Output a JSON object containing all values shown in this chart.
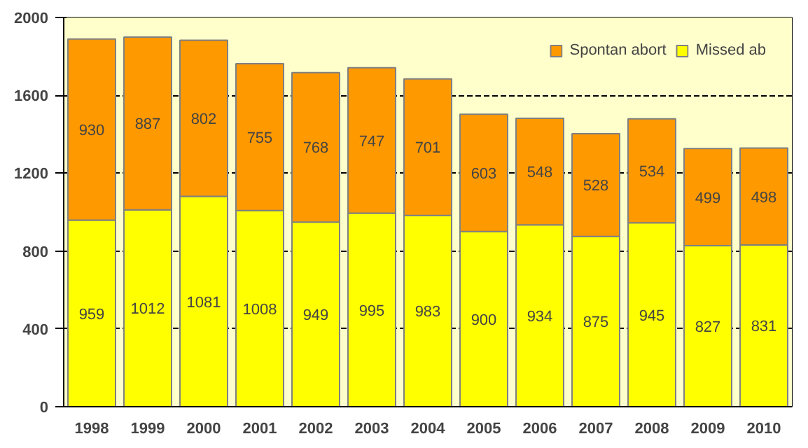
{
  "chart_data": {
    "type": "bar",
    "stacked": true,
    "categories": [
      "1998",
      "1999",
      "2000",
      "2001",
      "2002",
      "2003",
      "2004",
      "2005",
      "2006",
      "2007",
      "2008",
      "2009",
      "2010"
    ],
    "series": [
      {
        "name": "Missed ab",
        "color": "#ffff00",
        "values": [
          959,
          1012,
          1081,
          1008,
          949,
          995,
          983,
          900,
          934,
          875,
          945,
          827,
          831
        ]
      },
      {
        "name": "Spontan abort",
        "color": "#ff9900",
        "values": [
          930,
          887,
          802,
          755,
          768,
          747,
          701,
          603,
          548,
          528,
          534,
          499,
          498
        ]
      }
    ],
    "ylim": [
      0,
      2000
    ],
    "yticks": [
      0,
      400,
      800,
      1200,
      1600,
      2000
    ],
    "bands": [
      {
        "axis": "y",
        "from": 0,
        "to": 2000,
        "color": "#ffffcc"
      }
    ],
    "grid": "y",
    "legend": "top right",
    "data_labels": true
  }
}
